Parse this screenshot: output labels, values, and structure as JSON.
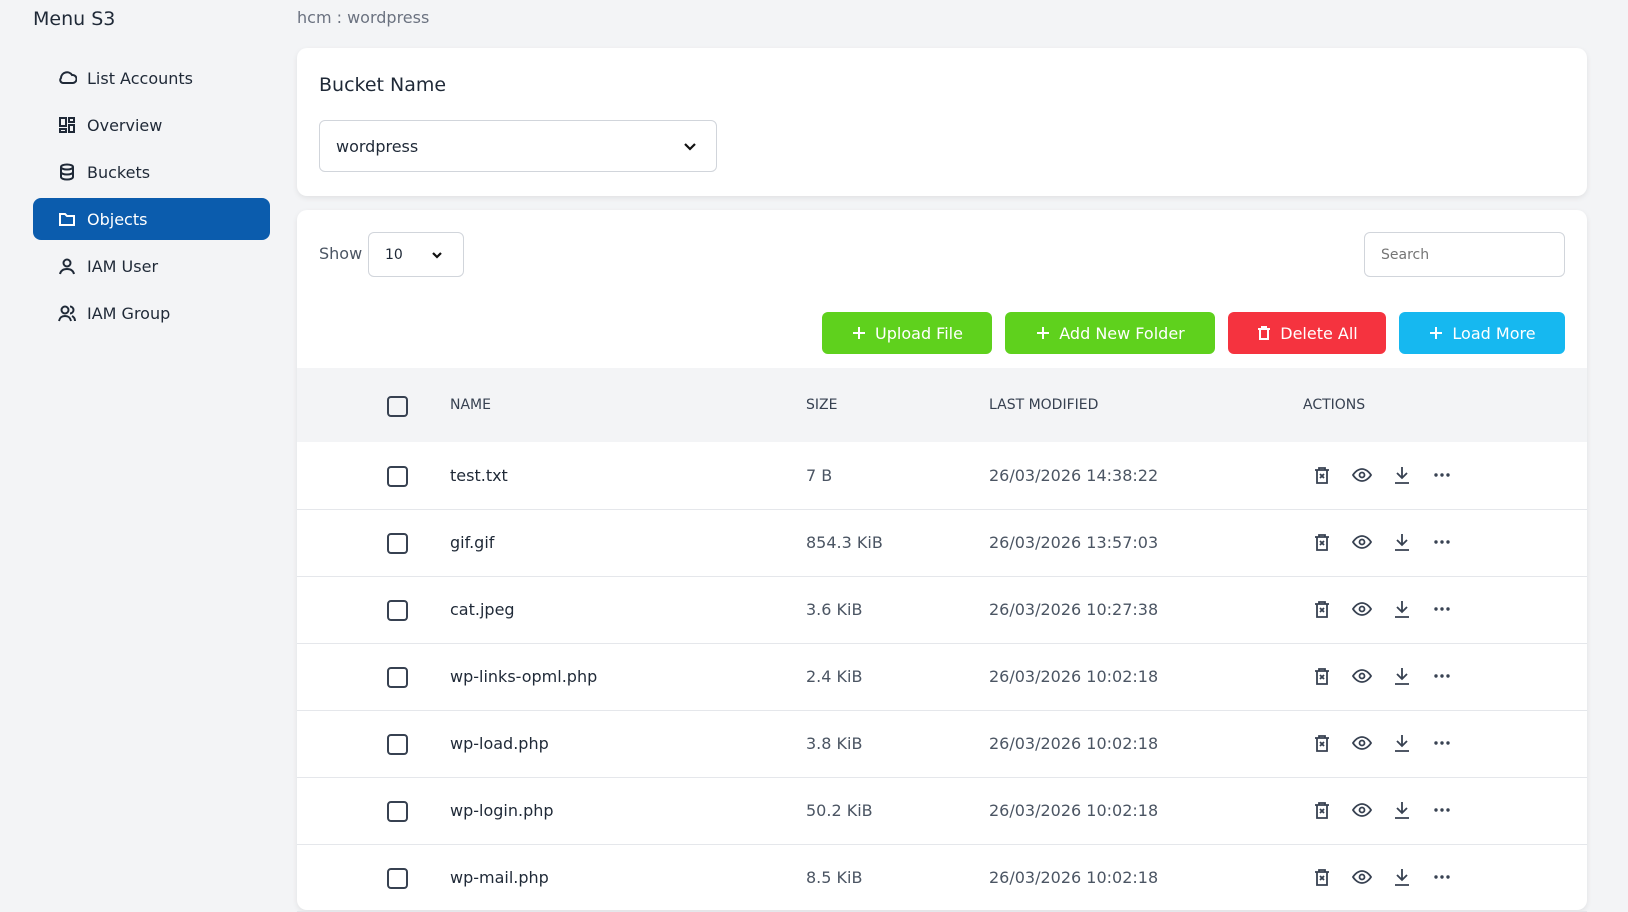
{
  "sidebar": {
    "title": "Menu S3",
    "items": [
      "List Accounts",
      "Overview",
      "Buckets",
      "Objects",
      "IAM User",
      "IAM Group"
    ],
    "active": 3
  },
  "breadcrumb": "hcm : wordpress",
  "bucket": {
    "label": "Bucket Name",
    "selected": "wordpress"
  },
  "controls": {
    "show_label": "Show",
    "page_size": "10",
    "search_placeholder": "Search"
  },
  "buttons": [
    "Upload File",
    "Add New Folder",
    "Delete All",
    "Load More"
  ],
  "table": {
    "columns": [
      "NAME",
      "SIZE",
      "LAST MODIFIED",
      "ACTIONS"
    ],
    "rows": [
      [
        "test.txt",
        "7 B",
        "26/03/2026 14:38:22"
      ],
      [
        "gif.gif",
        "854.3 KiB",
        "26/03/2026 13:57:03"
      ],
      [
        "cat.jpeg",
        "3.6 KiB",
        "26/03/2026 10:27:38"
      ],
      [
        "wp-links-opml.php",
        "2.4 KiB",
        "26/03/2026 10:02:18"
      ],
      [
        "wp-load.php",
        "3.8 KiB",
        "26/03/2026 10:02:18"
      ],
      [
        "wp-login.php",
        "50.2 KiB",
        "26/03/2026 10:02:18"
      ],
      [
        "wp-mail.php",
        "8.5 KiB",
        "26/03/2026 10:02:18"
      ]
    ]
  }
}
